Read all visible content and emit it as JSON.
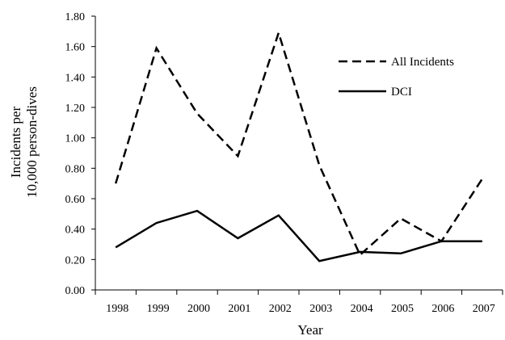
{
  "chart_data": {
    "type": "line",
    "title": "",
    "xlabel": "Year",
    "ylabel_lines": [
      "Incidents per",
      "10,000 person-dives"
    ],
    "categories": [
      "1998",
      "1999",
      "2000",
      "2001",
      "2002",
      "2003",
      "2004",
      "2005",
      "2006",
      "2007"
    ],
    "ylim": [
      0,
      1.8
    ],
    "yticks": [
      "0.00",
      "0.20",
      "0.40",
      "0.60",
      "0.80",
      "1.00",
      "1.20",
      "1.40",
      "1.60",
      "1.80"
    ],
    "grid": false,
    "legend_position": "top-right",
    "series": [
      {
        "name": "All Incidents",
        "style": "dashed",
        "color": "#000000",
        "values": [
          0.7,
          1.59,
          1.16,
          0.88,
          1.69,
          0.82,
          0.23,
          0.47,
          0.32,
          0.73
        ]
      },
      {
        "name": "DCI",
        "style": "solid",
        "color": "#000000",
        "values": [
          0.28,
          0.44,
          0.52,
          0.34,
          0.49,
          0.19,
          0.25,
          0.24,
          0.32,
          0.32
        ]
      }
    ]
  }
}
